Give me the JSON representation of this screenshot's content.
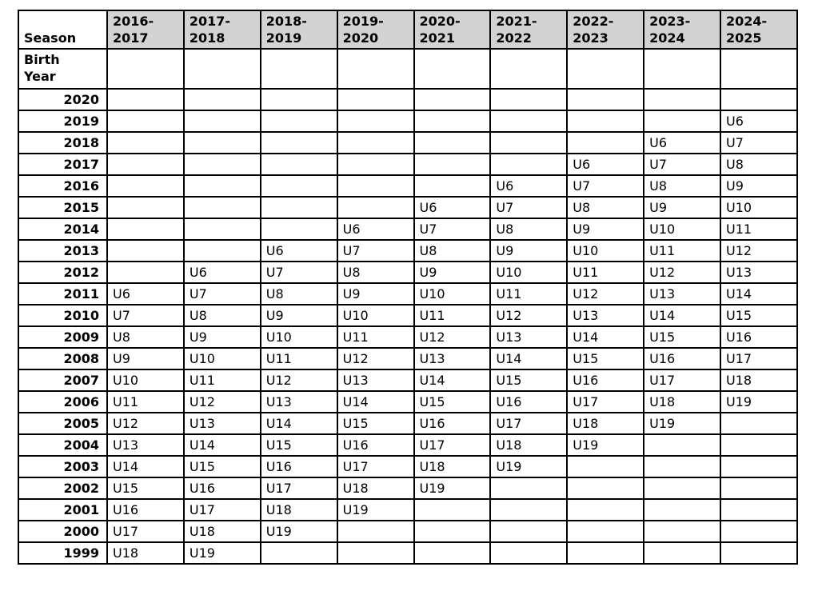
{
  "table": {
    "corner_header": "Season",
    "birth_year_header": "Birth Year",
    "seasons": [
      "2016-2017",
      "2017-2018",
      "2018-2019",
      "2019-2020",
      "2020-2021",
      "2021-2022",
      "2022-2023",
      "2023-2024",
      "2024-2025"
    ],
    "rows": [
      {
        "birth_year": "2020",
        "values": [
          "",
          "",
          "",
          "",
          "",
          "",
          "",
          "",
          ""
        ]
      },
      {
        "birth_year": "2019",
        "values": [
          "",
          "",
          "",
          "",
          "",
          "",
          "",
          "",
          "U6"
        ]
      },
      {
        "birth_year": "2018",
        "values": [
          "",
          "",
          "",
          "",
          "",
          "",
          "",
          "U6",
          "U7"
        ]
      },
      {
        "birth_year": "2017",
        "values": [
          "",
          "",
          "",
          "",
          "",
          "",
          "U6",
          "U7",
          "U8"
        ]
      },
      {
        "birth_year": "2016",
        "values": [
          "",
          "",
          "",
          "",
          "",
          "U6",
          "U7",
          "U8",
          "U9"
        ]
      },
      {
        "birth_year": "2015",
        "values": [
          "",
          "",
          "",
          "",
          "U6",
          "U7",
          "U8",
          "U9",
          "U10"
        ]
      },
      {
        "birth_year": "2014",
        "values": [
          "",
          "",
          "",
          "U6",
          "U7",
          "U8",
          "U9",
          "U10",
          "U11"
        ]
      },
      {
        "birth_year": "2013",
        "values": [
          "",
          "",
          "U6",
          "U7",
          "U8",
          "U9",
          "U10",
          "U11",
          "U12"
        ]
      },
      {
        "birth_year": "2012",
        "values": [
          "",
          "U6",
          "U7",
          "U8",
          "U9",
          "U10",
          "U11",
          "U12",
          "U13"
        ]
      },
      {
        "birth_year": "2011",
        "values": [
          "U6",
          "U7",
          "U8",
          "U9",
          "U10",
          "U11",
          "U12",
          "U13",
          "U14"
        ]
      },
      {
        "birth_year": "2010",
        "values": [
          "U7",
          "U8",
          "U9",
          "U10",
          "U11",
          "U12",
          "U13",
          "U14",
          "U15"
        ]
      },
      {
        "birth_year": "2009",
        "values": [
          "U8",
          "U9",
          "U10",
          "U11",
          "U12",
          "U13",
          "U14",
          "U15",
          "U16"
        ]
      },
      {
        "birth_year": "2008",
        "values": [
          "U9",
          "U10",
          "U11",
          "U12",
          "U13",
          "U14",
          "U15",
          "U16",
          "U17"
        ]
      },
      {
        "birth_year": "2007",
        "values": [
          "U10",
          "U11",
          "U12",
          "U13",
          "U14",
          "U15",
          "U16",
          "U17",
          "U18"
        ]
      },
      {
        "birth_year": "2006",
        "values": [
          "U11",
          "U12",
          "U13",
          "U14",
          "U15",
          "U16",
          "U17",
          "U18",
          "U19"
        ]
      },
      {
        "birth_year": "2005",
        "values": [
          "U12",
          "U13",
          "U14",
          "U15",
          "U16",
          "U17",
          "U18",
          "U19",
          ""
        ]
      },
      {
        "birth_year": "2004",
        "values": [
          "U13",
          "U14",
          "U15",
          "U16",
          "U17",
          "U18",
          "U19",
          "",
          ""
        ]
      },
      {
        "birth_year": "2003",
        "values": [
          "U14",
          "U15",
          "U16",
          "U17",
          "U18",
          "U19",
          "",
          "",
          ""
        ]
      },
      {
        "birth_year": "2002",
        "values": [
          "U15",
          "U16",
          "U17",
          "U18",
          "U19",
          "",
          "",
          "",
          ""
        ]
      },
      {
        "birth_year": "2001",
        "values": [
          "U16",
          "U17",
          "U18",
          "U19",
          "",
          "",
          "",
          "",
          ""
        ]
      },
      {
        "birth_year": "2000",
        "values": [
          "U17",
          "U18",
          "U19",
          "",
          "",
          "",
          "",
          "",
          ""
        ]
      },
      {
        "birth_year": "1999",
        "values": [
          "U18",
          "U19",
          "",
          "",
          "",
          "",
          "",
          "",
          ""
        ]
      }
    ]
  },
  "colors": {
    "season_header_bg": "#d3d3d3",
    "border": "#000000",
    "page_bg": "#ffffff"
  }
}
